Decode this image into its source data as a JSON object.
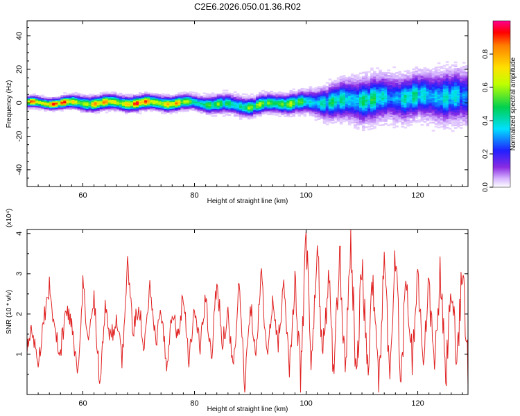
{
  "title": "C2E6.2026.050.01.36.R02",
  "chart_data": [
    {
      "type": "heatmap",
      "name": "spectrogram",
      "xlabel": "Height of straight line (km)",
      "ylabel": "Frequency (Hz)",
      "xlim": [
        50,
        129
      ],
      "ylim": [
        -50,
        49
      ],
      "xticks": [
        60,
        80,
        100,
        120
      ],
      "yticks": [
        -40,
        -20,
        0,
        20,
        40
      ],
      "colorbar": {
        "label": "Normalized spectral amplitude",
        "range": [
          0,
          1
        ],
        "ticks": [
          0.0,
          0.2,
          0.4,
          0.6,
          0.8
        ],
        "tick_labels": [
          "0.0",
          "0.2",
          "0.4",
          "0.6",
          "0.8"
        ]
      },
      "ridge": {
        "x": [
          50,
          55,
          60,
          65,
          70,
          75,
          80,
          85,
          90,
          95,
          100,
          105,
          110,
          115,
          120,
          125,
          129
        ],
        "center": [
          0,
          0,
          0,
          0,
          0,
          0,
          0,
          -1,
          -2,
          0,
          0,
          1,
          2,
          3,
          4,
          4,
          3
        ],
        "spread": [
          1.5,
          1.5,
          2,
          2,
          2,
          2,
          2,
          2.5,
          2.5,
          2.5,
          3,
          5,
          6,
          6,
          6,
          7,
          7
        ],
        "peak": [
          1.0,
          1.0,
          0.8,
          0.9,
          0.95,
          0.9,
          0.6,
          0.55,
          0.6,
          0.7,
          0.5,
          0.45,
          0.5,
          0.4,
          0.45,
          0.4,
          0.35
        ]
      }
    },
    {
      "type": "line",
      "name": "snr",
      "xlabel": "Height of straight line (km)",
      "ylabel": "SNR (10 * v/v)",
      "multiplier_label": "(x10⁴)",
      "xlim": [
        50,
        129
      ],
      "ylim": [
        0,
        4.1
      ],
      "xticks": [
        60,
        80,
        100,
        120
      ],
      "yticks": [
        1,
        2,
        3,
        4
      ],
      "series": [
        {
          "name": "SNR",
          "color": "#e02020",
          "x": [
            50,
            51,
            52,
            53,
            54,
            55,
            56,
            57,
            58,
            59,
            60,
            61,
            62,
            63,
            64,
            65,
            66,
            67,
            68,
            69,
            70,
            71,
            72,
            73,
            74,
            75,
            76,
            77,
            78,
            79,
            80,
            81,
            82,
            83,
            84,
            85,
            86,
            87,
            88,
            89,
            90,
            91,
            92,
            93,
            94,
            95,
            96,
            97,
            98,
            99,
            100,
            101,
            102,
            103,
            104,
            105,
            106,
            107,
            108,
            109,
            110,
            111,
            112,
            113,
            114,
            115,
            116,
            117,
            118,
            119,
            120,
            121,
            122,
            123,
            124,
            125,
            126,
            127,
            128,
            129
          ],
          "values": [
            1.2,
            1.6,
            0.8,
            1.9,
            2.7,
            1.5,
            1.1,
            2.1,
            1.8,
            0.4,
            2.8,
            1.2,
            2.5,
            0.3,
            2.2,
            1.4,
            1.9,
            0.8,
            3.3,
            1.5,
            2.3,
            1.1,
            2.6,
            1.3,
            2.0,
            0.7,
            2.2,
            1.4,
            2.5,
            0.9,
            2.1,
            1.2,
            2.4,
            0.8,
            2.9,
            1.3,
            2.0,
            0.6,
            2.8,
            0.2,
            2.3,
            1.1,
            3.0,
            0.9,
            2.2,
            1.3,
            2.8,
            0.7,
            2.6,
            0.5,
            3.9,
            0.6,
            3.6,
            0.9,
            3.0,
            0.4,
            3.5,
            0.6,
            4.0,
            0.3,
            3.2,
            0.7,
            2.9,
            0.4,
            3.1,
            0.6,
            3.4,
            0.5,
            2.9,
            0.8,
            3.1,
            0.5,
            2.7,
            0.6,
            3.0,
            0.4,
            2.6,
            0.7,
            3.3,
            0.5
          ]
        }
      ]
    }
  ]
}
